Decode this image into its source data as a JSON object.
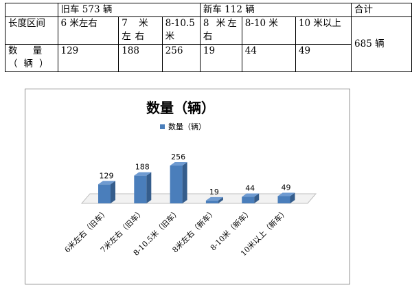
{
  "table": {
    "header": {
      "old_group": "旧车 573 辆",
      "new_group": "新车 112 辆",
      "total": "合计"
    },
    "length_row": {
      "label": "长度区间",
      "cells": [
        "6 米左右",
        "7 米左右",
        "8-10.5 米",
        "8 米左右",
        "8-10 米",
        "10 米以上"
      ]
    },
    "count_row": {
      "label": "数 量（辆）",
      "cells": [
        "129",
        "188",
        "256",
        "19",
        "44",
        "49"
      ]
    },
    "total_value": "685 辆"
  },
  "chart_data": {
    "type": "bar",
    "title": "数量（辆）",
    "legend": [
      "数量（辆）"
    ],
    "legend_position": "top",
    "categories": [
      "6米左右（旧车）",
      "7米左右（旧车）",
      "8-10.5米（旧车）",
      "8米左右（新车）",
      "8-10米（新车）",
      "10米以上（新车）"
    ],
    "values": [
      129,
      188,
      256,
      19,
      44,
      49
    ],
    "data_labels": true,
    "style": "3d-column",
    "grid": false,
    "ylim": [
      0,
      256
    ],
    "bar_color": "#4a7ebb"
  }
}
